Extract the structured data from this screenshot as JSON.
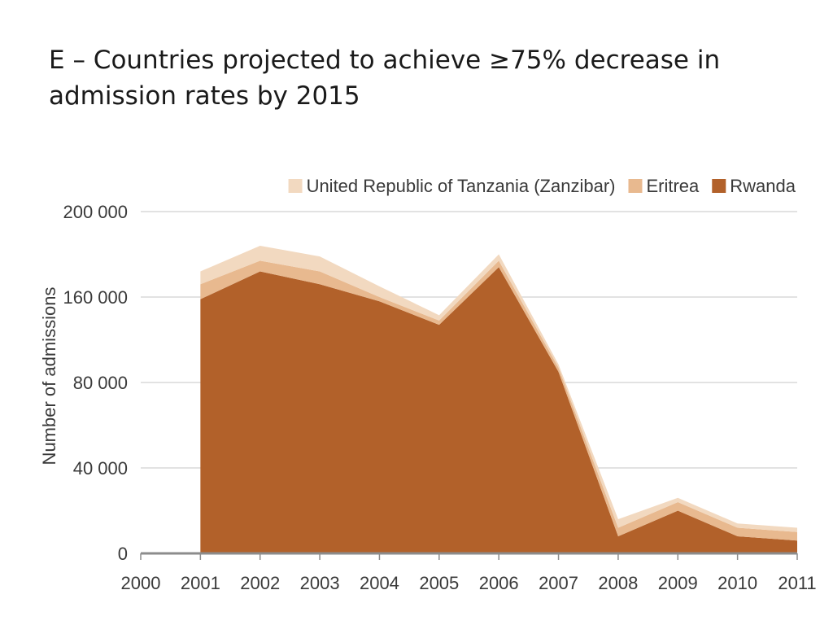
{
  "chart_data": {
    "type": "area",
    "stacked": true,
    "title": "E – Countries projected to achieve ≥75% decrease in\nadmission rates by 2015",
    "xlabel": "",
    "ylabel": "Number of admissions",
    "x": [
      "2000",
      "2001",
      "2002",
      "2003",
      "2004",
      "2005",
      "2006",
      "2007",
      "2008",
      "2009",
      "2010",
      "2011"
    ],
    "y_tick_values": [
      0,
      40000,
      80000,
      160000,
      200000
    ],
    "y_tick_labels": [
      "0",
      "40 000",
      "80 000",
      "160 000",
      "200 000"
    ],
    "legend_position": "top-right",
    "grid": true,
    "series": [
      {
        "name": "Rwanda",
        "color": "#b2612a",
        "values": [
          null,
          158000,
          172000,
          166000,
          156000,
          134000,
          174000,
          90000,
          8000,
          20000,
          8000,
          6000
        ]
      },
      {
        "name": "Eritrea",
        "color": "#e8b98f",
        "values": [
          null,
          8000,
          5000,
          6000,
          4000,
          4000,
          3000,
          4000,
          4000,
          4000,
          4000,
          4000
        ]
      },
      {
        "name": "United Republic of Tanzania (Zanzibar)",
        "color": "#f2d9c0",
        "values": [
          null,
          6000,
          7000,
          7000,
          5000,
          5000,
          3000,
          3000,
          4000,
          2000,
          2000,
          2000
        ]
      }
    ]
  }
}
